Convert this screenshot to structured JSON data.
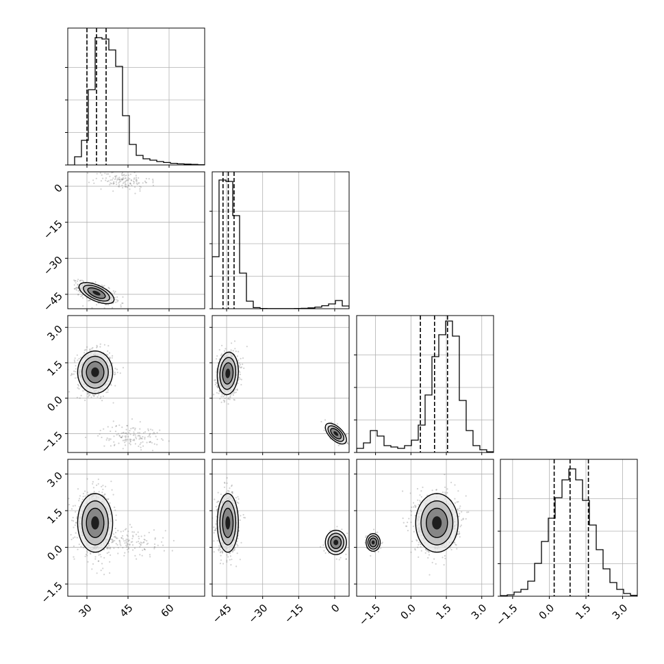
{
  "chart_data": {
    "type": "corner",
    "grid": true,
    "colors": {
      "ink": "#000000",
      "grid": "#b0b0b0",
      "points": "#7a7a7a"
    },
    "quantile_lines": "dashed",
    "parameters": [
      {
        "id": "p0",
        "range": [
          23,
          73
        ],
        "ticks": [
          "30",
          "45",
          "60"
        ]
      },
      {
        "id": "p1",
        "range": [
          -51,
          6
        ],
        "ticks": [
          "-45",
          "-30",
          "-15",
          "0"
        ]
      },
      {
        "id": "p2",
        "range": [
          -2.3,
          3.5
        ],
        "ticks": [
          "-1.5",
          "0.0",
          "1.5",
          "3.0"
        ]
      },
      {
        "id": "p3",
        "range": [
          -2.0,
          3.6
        ],
        "ticks": [
          "-1.5",
          "0.0",
          "1.5",
          "3.0"
        ]
      }
    ],
    "histograms": [
      {
        "param": "p0",
        "counts": [
          0,
          0.06,
          0.18,
          0.55,
          0.93,
          0.92,
          0.84,
          0.72,
          0.36,
          0.15,
          0.07,
          0.045,
          0.035,
          0.025,
          0.018,
          0.012,
          0.008,
          0.006,
          0.004,
          0.002
        ],
        "quantiles": [
          30.0,
          33.5,
          37.0
        ]
      },
      {
        "param": "p1",
        "counts": [
          0.38,
          0.94,
          0.93,
          0.68,
          0.26,
          0.055,
          0.008,
          0.002,
          0.001,
          0.001,
          0.001,
          0.001,
          0.002,
          0.003,
          0.006,
          0.012,
          0.022,
          0.035,
          0.06,
          0.02
        ],
        "quantiles": [
          -46.5,
          -44.3,
          -41.9
        ]
      },
      {
        "param": "p2",
        "counts": [
          0.03,
          0.07,
          0.16,
          0.12,
          0.05,
          0.04,
          0.03,
          0.05,
          0.09,
          0.2,
          0.42,
          0.7,
          0.86,
          0.96,
          0.85,
          0.38,
          0.16,
          0.05,
          0.02,
          0.005
        ],
        "quantiles": [
          0.4,
          1.0,
          1.55
        ]
      },
      {
        "param": "p3",
        "counts": [
          0.004,
          0.01,
          0.03,
          0.05,
          0.11,
          0.24,
          0.4,
          0.57,
          0.72,
          0.85,
          0.93,
          0.85,
          0.7,
          0.52,
          0.34,
          0.2,
          0.1,
          0.05,
          0.02,
          0.007
        ],
        "quantiles": [
          0.2,
          0.85,
          1.6
        ]
      }
    ],
    "pairs": [
      {
        "x": "p0",
        "y": "p1",
        "modes": [
          {
            "mx": 33.5,
            "my": -44.5,
            "sx": 3.2,
            "sy": 2.2,
            "rho": -0.6,
            "weight": 0.85,
            "contours": true
          },
          {
            "mx": 43.0,
            "my": 2.5,
            "sx": 5.0,
            "sy": 2.0,
            "rho": -0.2,
            "weight": 0.15,
            "contours": false
          }
        ]
      },
      {
        "x": "p0",
        "y": "p2",
        "modes": [
          {
            "mx": 33.0,
            "my": 1.1,
            "sx": 3.2,
            "sy": 0.45,
            "rho": 0.0,
            "weight": 0.85,
            "contours": true
          },
          {
            "mx": 46.0,
            "my": -1.6,
            "sx": 5.5,
            "sy": 0.25,
            "rho": 0.0,
            "weight": 0.15,
            "contours": false
          }
        ]
      },
      {
        "x": "p1",
        "y": "p2",
        "modes": [
          {
            "mx": -44.5,
            "my": 1.05,
            "sx": 2.2,
            "sy": 0.45,
            "rho": 0.1,
            "weight": 0.85,
            "contours": true
          },
          {
            "mx": 0.5,
            "my": -1.5,
            "sx": 2.2,
            "sy": 0.22,
            "rho": -0.6,
            "weight": 0.15,
            "contours": true
          }
        ]
      },
      {
        "x": "p0",
        "y": "p3",
        "modes": [
          {
            "mx": 33.0,
            "my": 1.0,
            "sx": 3.2,
            "sy": 0.6,
            "rho": 0.0,
            "weight": 0.85,
            "contours": true
          },
          {
            "mx": 46.0,
            "my": 0.2,
            "sx": 6.0,
            "sy": 0.3,
            "rho": 0.0,
            "weight": 0.15,
            "contours": false
          }
        ]
      },
      {
        "x": "p1",
        "y": "p3",
        "modes": [
          {
            "mx": -44.5,
            "my": 1.0,
            "sx": 2.2,
            "sy": 0.6,
            "rho": 0.0,
            "weight": 0.85,
            "contours": true
          },
          {
            "mx": 0.5,
            "my": 0.2,
            "sx": 2.2,
            "sy": 0.25,
            "rho": 0.0,
            "weight": 0.15,
            "contours": true
          }
        ]
      },
      {
        "x": "p2",
        "y": "p3",
        "modes": [
          {
            "mx": 1.1,
            "my": 1.0,
            "sx": 0.45,
            "sy": 0.6,
            "rho": 0.0,
            "weight": 0.85,
            "contours": true
          },
          {
            "mx": -1.6,
            "my": 0.2,
            "sx": 0.15,
            "sy": 0.18,
            "rho": 0.0,
            "weight": 0.15,
            "contours": true
          }
        ]
      }
    ]
  }
}
